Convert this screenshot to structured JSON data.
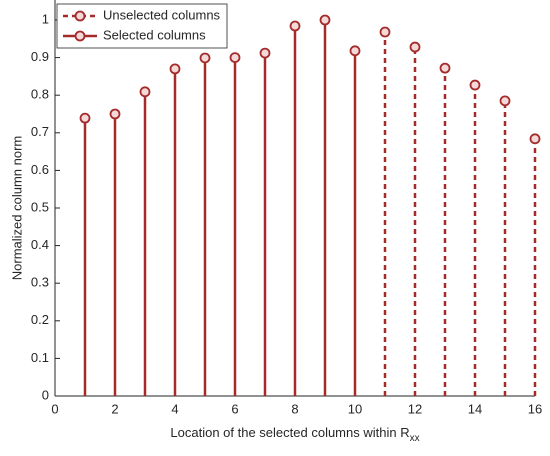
{
  "chart_data": {
    "type": "stem",
    "x_label": {
      "text": "Location of the selected columns within R",
      "subscript": "xx"
    },
    "y_label": "Normalized column norm",
    "xlim": [
      0,
      16
    ],
    "xticks": [
      0,
      2,
      4,
      6,
      8,
      10,
      12,
      14,
      16
    ],
    "ylim": [
      0,
      1
    ],
    "yticks": [
      0,
      0.1,
      0.2,
      0.3,
      0.4,
      0.5,
      0.6,
      0.7,
      0.8,
      0.9,
      1
    ],
    "legend": "upper left",
    "series": [
      {
        "name": "Unselected columns",
        "color": "#a52a2a",
        "linestyle": "dashed",
        "x": [
          11,
          12,
          13,
          14,
          15,
          16
        ],
        "values": [
          0.968,
          0.928,
          0.872,
          0.827,
          0.785,
          0.684
        ]
      },
      {
        "name": "Selected columns",
        "color": "#a52a2a",
        "linestyle": "solid",
        "x": [
          1,
          2,
          3,
          4,
          5,
          6,
          7,
          8,
          9,
          10
        ],
        "values": [
          0.739,
          0.75,
          0.809,
          0.87,
          0.899,
          0.9,
          0.912,
          0.984,
          1.0,
          0.918
        ]
      }
    ]
  }
}
